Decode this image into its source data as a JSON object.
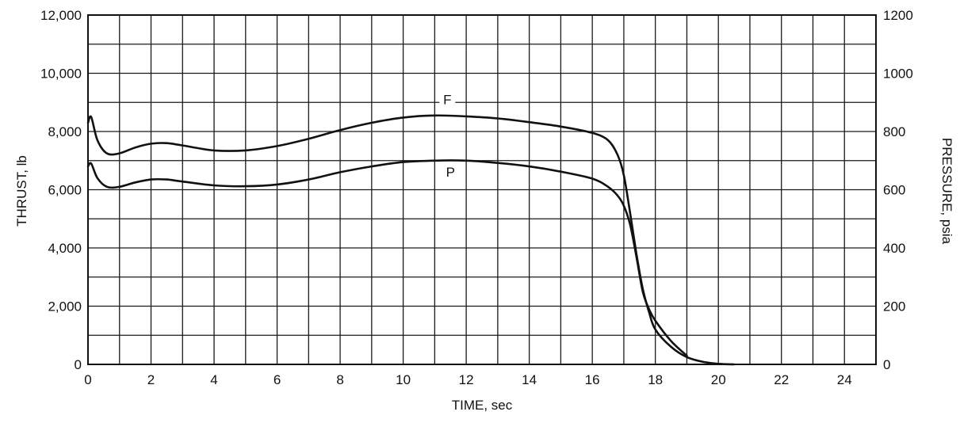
{
  "chart_data": {
    "type": "line",
    "xlabel": "TIME, sec",
    "ylabel_left": "THRUST, lb",
    "ylabel_right": "PRESSURE, psia",
    "xlim": [
      0,
      25
    ],
    "ylim_left": [
      0,
      12000
    ],
    "ylim_right": [
      0,
      1200
    ],
    "x_ticks": [
      "0",
      "2",
      "4",
      "6",
      "8",
      "10",
      "12",
      "14",
      "16",
      "18",
      "20",
      "22",
      "24"
    ],
    "y_ticks_left": [
      "0",
      "2,000",
      "4,000",
      "6,000",
      "8,000",
      "10,000",
      "12,000"
    ],
    "y_ticks_right": [
      "0",
      "200",
      "400",
      "600",
      "800",
      "1000",
      "1200"
    ],
    "grid": true,
    "series": [
      {
        "name": "F",
        "axis": "left",
        "x": [
          0,
          0.1,
          0.3,
          0.6,
          1.0,
          1.5,
          2.0,
          2.5,
          3.0,
          4.0,
          5.0,
          6.0,
          7.0,
          8.0,
          9.0,
          10.0,
          11.0,
          12.0,
          13.0,
          14.0,
          15.0,
          16.0,
          16.5,
          16.8,
          17.0,
          17.2,
          17.4,
          17.6,
          17.8,
          18.0,
          18.5,
          19.0,
          19.5,
          20.0,
          20.5
        ],
        "y": [
          8300,
          8500,
          7700,
          7250,
          7250,
          7450,
          7580,
          7600,
          7520,
          7350,
          7350,
          7500,
          7750,
          8050,
          8300,
          8480,
          8550,
          8520,
          8450,
          8320,
          8170,
          7950,
          7700,
          7200,
          6500,
          5200,
          3800,
          2600,
          1800,
          1200,
          600,
          250,
          90,
          20,
          0
        ]
      },
      {
        "name": "P",
        "axis": "right",
        "x": [
          0,
          0.1,
          0.3,
          0.6,
          1.0,
          1.5,
          2.0,
          2.5,
          3.0,
          4.0,
          5.0,
          6.0,
          7.0,
          8.0,
          9.0,
          10.0,
          11.0,
          12.0,
          13.0,
          14.0,
          15.0,
          16.0,
          16.5,
          16.8,
          17.0,
          17.2,
          17.4,
          17.6,
          17.8,
          18.0,
          18.5,
          19.0
        ],
        "y": [
          680,
          690,
          640,
          610,
          610,
          625,
          635,
          635,
          628,
          615,
          612,
          618,
          635,
          660,
          680,
          695,
          700,
          700,
          692,
          680,
          662,
          638,
          610,
          580,
          545,
          480,
          370,
          250,
          190,
          150,
          80,
          30
        ]
      }
    ],
    "annotations": [
      {
        "text": "F",
        "x": 11.4,
        "y_left": 9000
      },
      {
        "text": "P",
        "x": 11.5,
        "y_left": 6500
      }
    ]
  }
}
